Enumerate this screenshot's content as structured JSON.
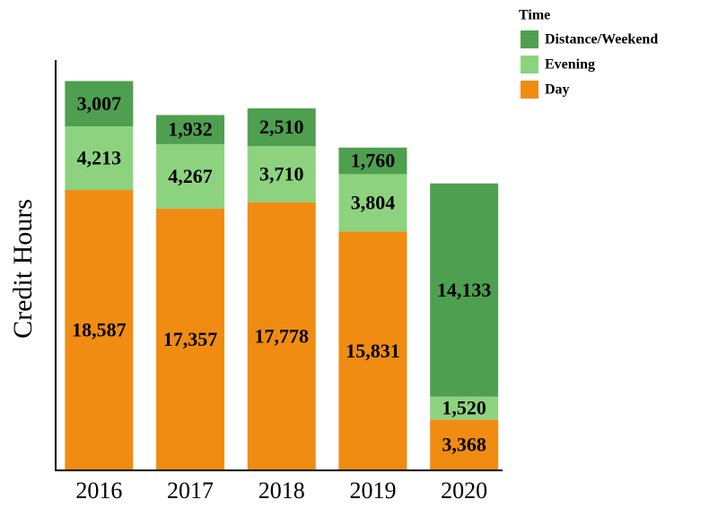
{
  "chart_data": {
    "type": "stacked-bar",
    "y_label": "Credit Hours",
    "legend_title": "Time",
    "legend": "top-right",
    "categories": [
      "2016",
      "2017",
      "2018",
      "2019",
      "2020"
    ],
    "series": [
      {
        "name": "Day",
        "color": "#f08c12",
        "values": [
          18587,
          17357,
          17778,
          15831,
          3368
        ],
        "value_labels": [
          "18,587",
          "17,357",
          "17,778",
          "15,831",
          "3,368"
        ]
      },
      {
        "name": "Evening",
        "color": "#8dd37f",
        "values": [
          4213,
          4267,
          3710,
          3804,
          1520
        ],
        "value_labels": [
          "4,213",
          "4,267",
          "3,710",
          "3,804",
          "1,520"
        ]
      },
      {
        "name": "Distance/Weekend",
        "color": "#4f9f50",
        "values": [
          3007,
          1932,
          2510,
          1760,
          14133
        ],
        "value_labels": [
          "3,007",
          "1,932",
          "2,510",
          "1,760",
          "14,133"
        ]
      }
    ],
    "ylim": [
      0,
      27200
    ]
  }
}
